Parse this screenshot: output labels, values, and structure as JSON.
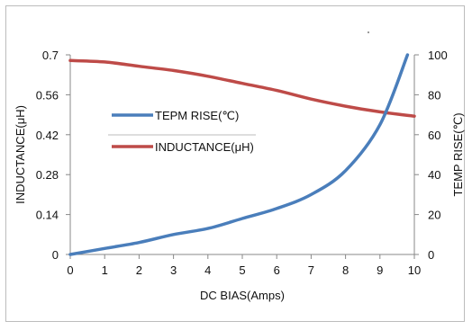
{
  "chart_data": {
    "type": "line",
    "x": [
      0,
      1,
      2,
      3,
      4,
      5,
      6,
      7,
      8,
      9,
      10
    ],
    "xlabel": "DC  BIAS(Amps)",
    "ylabel_left": "INDUCTANCE(μH)",
    "ylabel_right": "TEMP RISE(℃)",
    "xlim": [
      0,
      10
    ],
    "ylim_left": [
      0,
      0.7
    ],
    "ylim_right": [
      0,
      100
    ],
    "x_ticks": [
      "0",
      "1",
      "2",
      "3",
      "4",
      "5",
      "6",
      "7",
      "8",
      "9",
      "10"
    ],
    "y_left_ticks": [
      "0",
      "0.14",
      "0.28",
      "0.42",
      "0.56",
      "0.7"
    ],
    "y_right_ticks": [
      "0",
      "20",
      "40",
      "60",
      "80",
      "100"
    ],
    "grid": false,
    "legend_position": "center-left",
    "series": [
      {
        "name": "TEPM RISE(℃)",
        "axis": "right",
        "color": "#4a7ebb",
        "x": [
          0,
          1,
          2,
          3,
          4,
          5,
          6,
          7,
          8,
          9,
          9.8
        ],
        "values": [
          0,
          3,
          6,
          10,
          13,
          18,
          23,
          30,
          42,
          65,
          100
        ]
      },
      {
        "name": "INDUCTANCE(μH)",
        "axis": "left",
        "color": "#be4b48",
        "x": [
          0,
          1,
          2,
          3,
          4,
          5,
          6,
          7,
          8,
          9,
          10
        ],
        "values": [
          0.68,
          0.675,
          0.66,
          0.645,
          0.625,
          0.6,
          0.575,
          0.545,
          0.52,
          0.5,
          0.485
        ]
      }
    ]
  }
}
